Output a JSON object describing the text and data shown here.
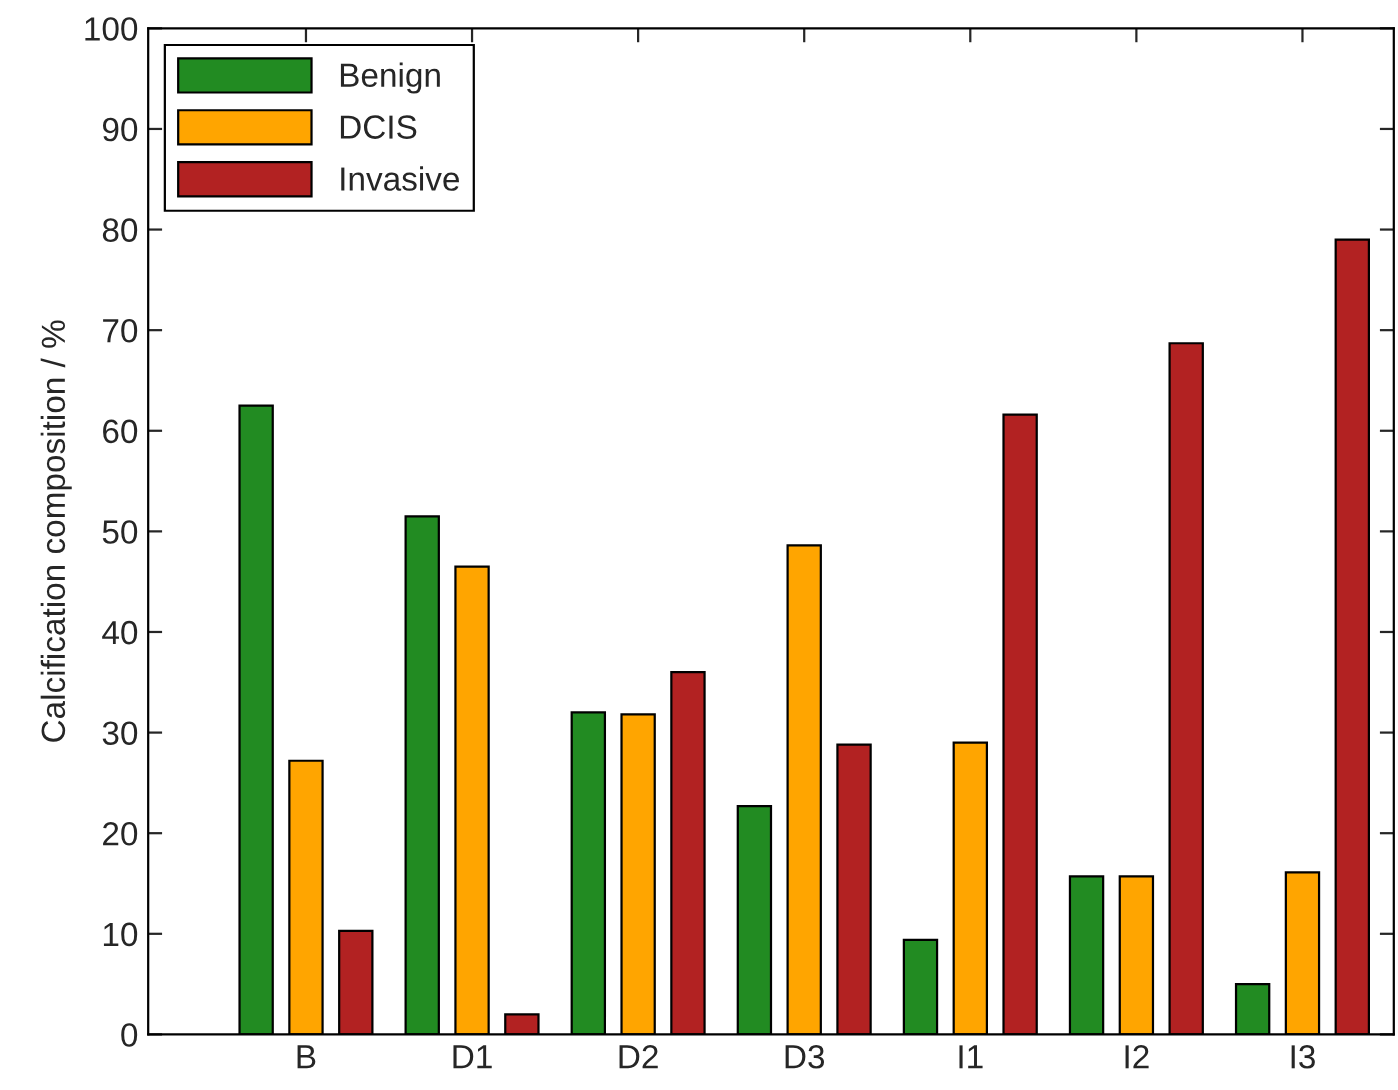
{
  "chart_data": {
    "type": "bar",
    "ylabel": "Calcification composition / %",
    "categories": [
      "B",
      "D1",
      "D2",
      "D3",
      "I1",
      "I2",
      "I3"
    ],
    "series": [
      {
        "name": "Benign",
        "color": "#228b22",
        "values": [
          62.5,
          51.5,
          32,
          22.7,
          9.4,
          15.7,
          5
        ]
      },
      {
        "name": "DCIS",
        "color": "#ffa500",
        "values": [
          27.2,
          46.5,
          31.8,
          48.6,
          29,
          15.7,
          16.1
        ]
      },
      {
        "name": "Invasive",
        "color": "#b22222",
        "values": [
          10.3,
          2,
          36,
          28.8,
          61.6,
          68.7,
          79
        ]
      }
    ],
    "ylim": [
      0,
      100
    ],
    "yticks": [
      0,
      10,
      20,
      30,
      40,
      50,
      60,
      70,
      80,
      90,
      100
    ],
    "grid": false,
    "legend": "top left"
  }
}
